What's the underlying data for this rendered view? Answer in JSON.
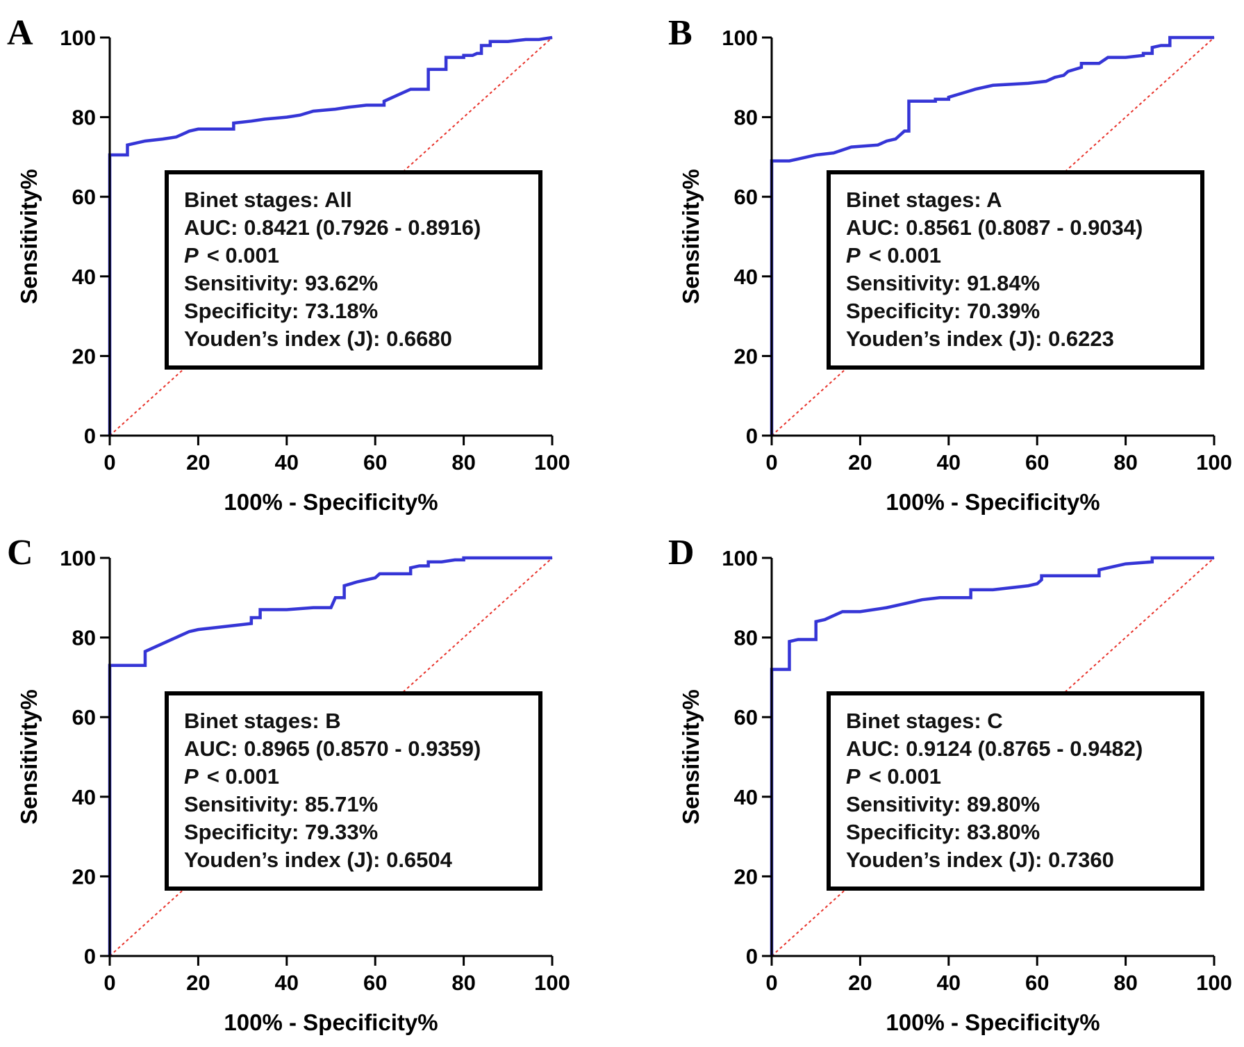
{
  "chart_data": [
    {
      "panel": "A",
      "type": "line",
      "xlabel": "100% - Specificity%",
      "ylabel": "Sensitivity%",
      "xlim": [
        0,
        100
      ],
      "ylim": [
        0,
        100
      ],
      "xticks": [
        "0",
        "20",
        "40",
        "60",
        "80",
        "100"
      ],
      "yticks": [
        "0",
        "20",
        "40",
        "60",
        "80",
        "100"
      ],
      "series": [
        {
          "name": "ROC",
          "color": "#3535d6",
          "x": [
            0,
            0,
            0,
            4,
            4,
            6,
            8,
            12,
            15,
            17,
            18,
            20,
            28,
            28,
            32,
            35,
            40,
            43,
            46,
            51,
            54,
            58,
            62,
            62,
            64,
            66,
            68,
            72,
            72,
            76,
            76,
            80,
            80,
            82,
            83,
            84,
            84,
            86,
            86,
            90,
            94,
            97,
            100
          ],
          "y": [
            0,
            70,
            70.5,
            70.5,
            73,
            73.5,
            74,
            74.5,
            75,
            76,
            76.5,
            77,
            77,
            78.5,
            79,
            79.5,
            80,
            80.5,
            81.5,
            82,
            82.5,
            83,
            83,
            84,
            85,
            86,
            87,
            87,
            92,
            92,
            95,
            95,
            95.5,
            95.5,
            96,
            96,
            98,
            98,
            99,
            99,
            99.5,
            99.5,
            100
          ]
        },
        {
          "name": "Reference",
          "color": "#e8322a",
          "x": [
            0,
            100
          ],
          "y": [
            0,
            100
          ]
        }
      ],
      "annotation": [
        "Binet stages: All",
        "AUC: 0.8421 (0.7926 - 0.8916)",
        "< 0.001",
        "Sensitivity: 93.62%",
        "Specificity: 73.18%",
        "Youden’s index (J): 0.6680"
      ],
      "p_label": "P"
    },
    {
      "panel": "B",
      "type": "line",
      "xlabel": "100% - Specificity%",
      "ylabel": "Sensitivity%",
      "xlim": [
        0,
        100
      ],
      "ylim": [
        0,
        100
      ],
      "xticks": [
        "0",
        "20",
        "40",
        "60",
        "80",
        "100"
      ],
      "yticks": [
        "0",
        "20",
        "40",
        "60",
        "80",
        "100"
      ],
      "series": [
        {
          "name": "ROC",
          "color": "#3535d6",
          "x": [
            0,
            0,
            0,
            4,
            6,
            8,
            10,
            14,
            18,
            24,
            26,
            28,
            30,
            31,
            31,
            37,
            37,
            40,
            40,
            43,
            46,
            50,
            58,
            62,
            64,
            66,
            67,
            70,
            70,
            74,
            76,
            80,
            84,
            84,
            86,
            86,
            88,
            90,
            90,
            100
          ],
          "y": [
            0,
            68,
            69,
            69,
            69.5,
            70,
            70.5,
            71,
            72.5,
            73,
            74,
            74.5,
            76.5,
            76.5,
            84,
            84,
            84.5,
            84.5,
            85,
            86,
            87,
            88,
            88.5,
            89,
            90,
            90.5,
            91.5,
            92.5,
            93.5,
            93.5,
            95,
            95,
            95.5,
            96,
            96,
            97.5,
            98,
            98,
            100,
            100
          ]
        },
        {
          "name": "Reference",
          "color": "#e8322a",
          "x": [
            0,
            100
          ],
          "y": [
            0,
            100
          ]
        }
      ],
      "annotation": [
        "Binet stages: A",
        "AUC: 0.8561 (0.8087 - 0.9034)",
        "< 0.001",
        "Sensitivity: 91.84%",
        "Specificity: 70.39%",
        "Youden’s index (J): 0.6223"
      ],
      "p_label": "P"
    },
    {
      "panel": "C",
      "type": "line",
      "xlabel": "100% - Specificity%",
      "ylabel": "Sensitivity%",
      "xlim": [
        0,
        100
      ],
      "ylim": [
        0,
        100
      ],
      "xticks": [
        "0",
        "20",
        "40",
        "60",
        "80",
        "100"
      ],
      "yticks": [
        "0",
        "20",
        "40",
        "60",
        "80",
        "100"
      ],
      "series": [
        {
          "name": "ROC",
          "color": "#3535d6",
          "x": [
            0,
            0,
            0,
            8,
            8,
            10,
            12,
            14,
            16,
            18,
            20,
            24,
            28,
            32,
            32,
            34,
            34,
            40,
            46,
            50,
            51,
            53,
            53,
            56,
            58,
            60,
            61,
            63,
            68,
            68,
            70,
            72,
            72,
            75,
            78,
            80,
            80,
            82,
            88,
            100
          ],
          "y": [
            0,
            72.5,
            73,
            73,
            76.5,
            77.5,
            78.5,
            79.5,
            80.5,
            81.5,
            82,
            82.5,
            83,
            83.5,
            85,
            85,
            87,
            87,
            87.5,
            87.5,
            90,
            90,
            93,
            94,
            94.5,
            95,
            96,
            96,
            96,
            97.5,
            98,
            98,
            99,
            99,
            99.5,
            99.5,
            100,
            100,
            100,
            100
          ]
        },
        {
          "name": "Reference",
          "color": "#e8322a",
          "x": [
            0,
            100
          ],
          "y": [
            0,
            100
          ]
        }
      ],
      "annotation": [
        "Binet stages: B",
        "AUC: 0.8965 (0.8570 - 0.9359)",
        "< 0.001",
        "Sensitivity: 85.71%",
        "Specificity: 79.33%",
        "Youden’s index (J): 0.6504"
      ],
      "p_label": "P"
    },
    {
      "panel": "D",
      "type": "line",
      "xlabel": "100% - Specificity%",
      "ylabel": "Sensitivity%",
      "xlim": [
        0,
        100
      ],
      "ylim": [
        0,
        100
      ],
      "xticks": [
        "0",
        "20",
        "40",
        "60",
        "80",
        "100"
      ],
      "yticks": [
        "0",
        "20",
        "40",
        "60",
        "80",
        "100"
      ],
      "series": [
        {
          "name": "ROC",
          "color": "#3535d6",
          "x": [
            0,
            0,
            4,
            4,
            6,
            10,
            10,
            12,
            14,
            16,
            18,
            20,
            26,
            30,
            34,
            38,
            40,
            45,
            45,
            50,
            54,
            58,
            60,
            61,
            61,
            64,
            70,
            74,
            74,
            76,
            80,
            86,
            86,
            90,
            100
          ],
          "y": [
            0,
            72,
            72,
            79,
            79.5,
            79.5,
            84,
            84.5,
            85.5,
            86.5,
            86.5,
            86.5,
            87.5,
            88.5,
            89.5,
            90,
            90,
            90,
            92,
            92,
            92.5,
            93,
            93.5,
            94.5,
            95.5,
            95.5,
            95.5,
            95.5,
            97,
            97.5,
            98.5,
            99,
            100,
            100,
            100
          ]
        },
        {
          "name": "Reference",
          "color": "#e8322a",
          "x": [
            0,
            100
          ],
          "y": [
            0,
            100
          ]
        }
      ],
      "annotation": [
        "Binet stages: C",
        "AUC: 0.9124 (0.8765 - 0.9482)",
        "< 0.001",
        "Sensitivity: 89.80%",
        "Specificity: 83.80%",
        "Youden’s index (J): 0.7360"
      ],
      "p_label": "P"
    }
  ]
}
